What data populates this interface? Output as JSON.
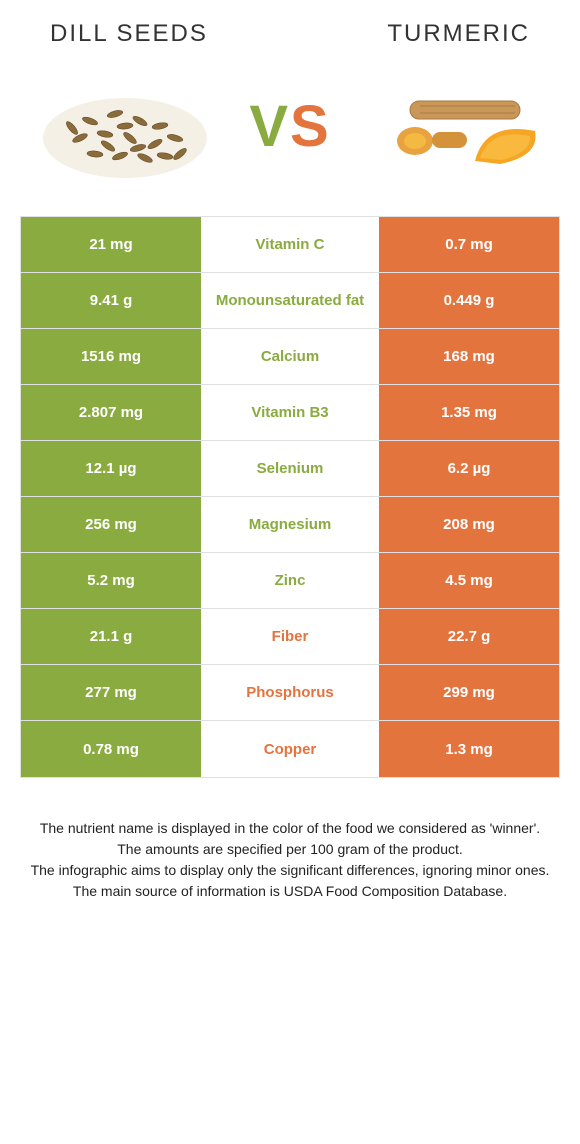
{
  "colors": {
    "left": "#8aab3f",
    "right": "#e3743e",
    "border": "#e0e0e0",
    "text": "#222"
  },
  "header": {
    "left_title": "DILL SEEDS",
    "right_title": "TURMERIC",
    "vs_v": "V",
    "vs_s": "S"
  },
  "rows": [
    {
      "left": "21 mg",
      "label": "Vitamin C",
      "right": "0.7 mg",
      "winner": "left"
    },
    {
      "left": "9.41 g",
      "label": "Monounsaturated fat",
      "right": "0.449 g",
      "winner": "left"
    },
    {
      "left": "1516 mg",
      "label": "Calcium",
      "right": "168 mg",
      "winner": "left"
    },
    {
      "left": "2.807 mg",
      "label": "Vitamin B3",
      "right": "1.35 mg",
      "winner": "left"
    },
    {
      "left": "12.1 µg",
      "label": "Selenium",
      "right": "6.2 µg",
      "winner": "left"
    },
    {
      "left": "256 mg",
      "label": "Magnesium",
      "right": "208 mg",
      "winner": "left"
    },
    {
      "left": "5.2 mg",
      "label": "Zinc",
      "right": "4.5 mg",
      "winner": "left"
    },
    {
      "left": "21.1 g",
      "label": "Fiber",
      "right": "22.7 g",
      "winner": "right"
    },
    {
      "left": "277 mg",
      "label": "Phosphorus",
      "right": "299 mg",
      "winner": "right"
    },
    {
      "left": "0.78 mg",
      "label": "Copper",
      "right": "1.3 mg",
      "winner": "right"
    }
  ],
  "footnotes": [
    "The nutrient name is displayed in the color of the food we considered as 'winner'.",
    "The amounts are specified per 100 gram of the product.",
    "The infographic aims to display only the significant differences, ignoring minor ones.",
    "The main source of information is USDA Food Composition Database."
  ]
}
